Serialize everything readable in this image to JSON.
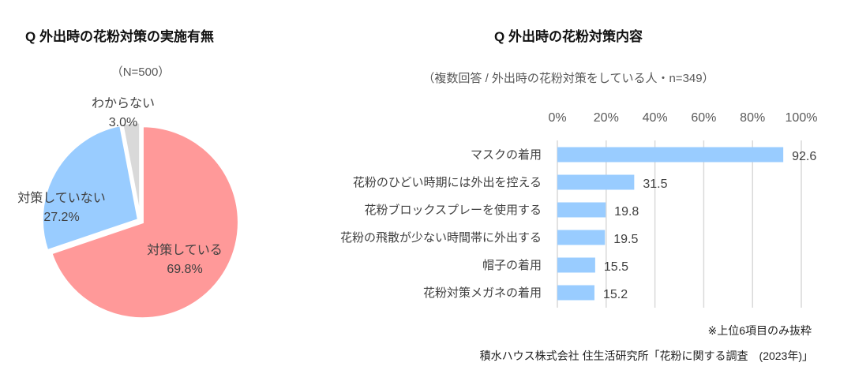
{
  "chart_data": [
    {
      "type": "pie",
      "title": "Q 外出時の花粉対策の実施有無",
      "subtitle": "（N=500）",
      "slices": [
        {
          "label": "対策している",
          "value": 69.8,
          "display": "69.8%",
          "color": "#FF9999"
        },
        {
          "label": "対策していない",
          "value": 27.2,
          "display": "27.2%",
          "color": "#99CCFF"
        },
        {
          "label": "わからない",
          "value": 3.0,
          "display": "3.0%",
          "color": "#D9D9D9"
        }
      ],
      "start": "top",
      "direction": "clockwise"
    },
    {
      "type": "bar",
      "orientation": "horizontal",
      "title": "Q 外出時の花粉対策内容",
      "subtitle": "（複数回答 / 外出時の花粉対策をしている人・n=349）",
      "categories": [
        "マスクの着用",
        "花粉のひどい時期には外出を控える",
        "花粉ブロックスプレーを使用する",
        "花粉の飛散が少ない時間帯に外出する",
        "帽子の着用",
        "花粉対策メガネの着用"
      ],
      "values": [
        92.6,
        31.5,
        19.8,
        19.5,
        15.5,
        15.2
      ],
      "value_labels": [
        "92.6",
        "31.5",
        "19.8",
        "19.5",
        "15.5",
        "15.2"
      ],
      "xlim": [
        0,
        100
      ],
      "xticks": [
        "0%",
        "20%",
        "40%",
        "60%",
        "80%",
        "100%"
      ],
      "xaxis_position": "top",
      "grid": true,
      "bar_color": "#99CCFF"
    }
  ],
  "notes": {
    "extract": "※上位6項目のみ抜粋",
    "source": "積水ハウス株式会社 住生活研究所「花粉に関する調査　(2023年)」"
  }
}
